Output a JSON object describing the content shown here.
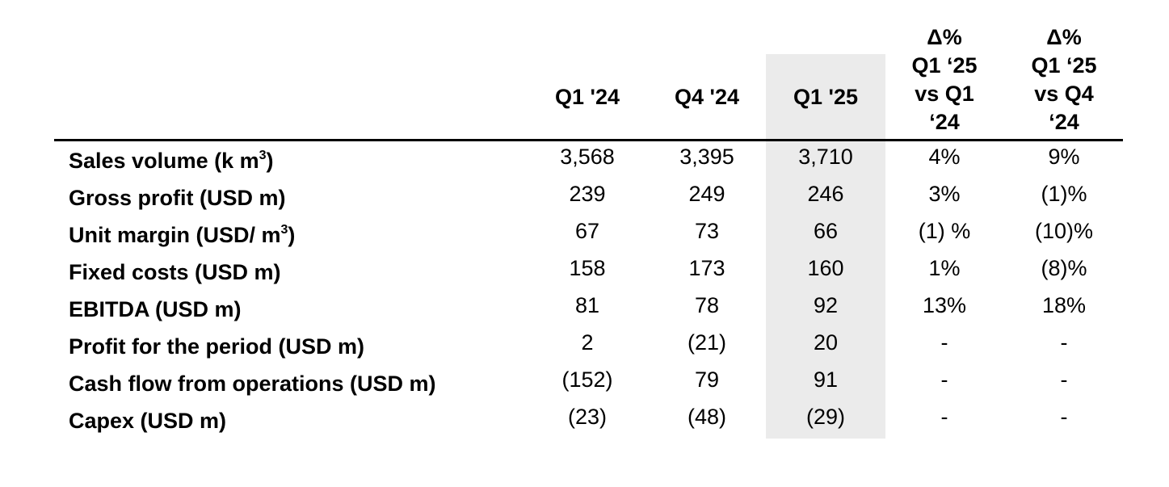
{
  "table": {
    "columns": [
      {
        "key": "q1_24",
        "label": "Q1 '24"
      },
      {
        "key": "q4_24",
        "label": "Q4 '24"
      },
      {
        "key": "q1_25",
        "label": "Q1 '25",
        "highlighted": true
      },
      {
        "key": "d_yoy",
        "label_lines": [
          "Δ%",
          "Q1 ‘25",
          "vs Q1",
          "‘24"
        ]
      },
      {
        "key": "d_qoq",
        "label_lines": [
          "Δ%",
          "Q1 ‘25",
          "vs Q4",
          "‘24"
        ]
      }
    ],
    "highlight_color": "#ebebeb",
    "rows": [
      {
        "label": "Sales volume (k m",
        "sup": "3",
        "label_suffix": ")",
        "values": [
          "3,568",
          "3,395",
          "3,710",
          "4%",
          "9%"
        ]
      },
      {
        "label": "Gross profit (USD m)",
        "values": [
          "239",
          "249",
          "246",
          "3%",
          "(1)%"
        ]
      },
      {
        "label": "Unit margin (USD/ m",
        "sup": "3",
        "label_suffix": ")",
        "values": [
          "67",
          "73",
          "66",
          "(1) %",
          "(10)%"
        ]
      },
      {
        "label": "Fixed costs (USD m)",
        "values": [
          "158",
          "173",
          "160",
          "1%",
          "(8)%"
        ]
      },
      {
        "label": "EBITDA (USD m)",
        "values": [
          "81",
          "78",
          "92",
          "13%",
          "18%"
        ]
      },
      {
        "label": "Profit for the period (USD m)",
        "values": [
          "2",
          "(21)",
          "20",
          "-",
          "-"
        ]
      },
      {
        "label": "Cash flow from operations (USD m)",
        "values": [
          "(152)",
          "79",
          "91",
          "-",
          "-"
        ]
      },
      {
        "label": "Capex (USD m)",
        "values": [
          "(23)",
          "(48)",
          "(29)",
          "-",
          "-"
        ]
      }
    ]
  }
}
